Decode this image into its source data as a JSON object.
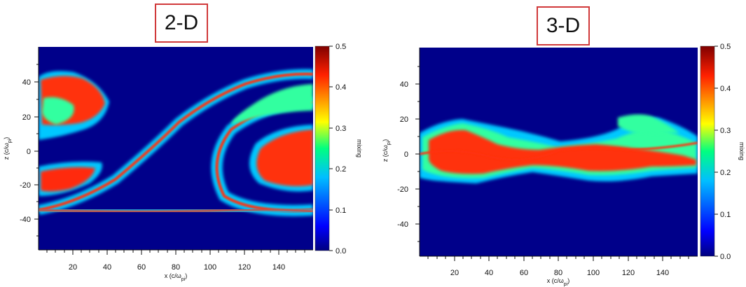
{
  "panels": [
    {
      "title": "2-D",
      "chart_data": {
        "type": "heatmap",
        "description_fields": "mixing fraction field over x-z plane",
        "xlabel": "x (c/ω_pi)",
        "ylabel": "z (c/ω_pi)",
        "xlim": [
          0,
          160
        ],
        "ylim": [
          -60,
          58
        ],
        "xticks": [
          20,
          40,
          60,
          80,
          100,
          120,
          140
        ],
        "yticks": [
          -40,
          -20,
          0,
          20,
          40
        ],
        "colorbar": {
          "label": "mixing",
          "range": [
            0.0,
            0.5
          ],
          "ticks": [
            "0.0",
            "0.1",
            "0.2",
            "0.3",
            "0.4",
            "0.5"
          ]
        },
        "colormap": [
          "#00007f",
          "#0000ff",
          "#00bfff",
          "#00ff80",
          "#ffff00",
          "#ff4000",
          "#7f0000"
        ]
      }
    },
    {
      "title": "3-D",
      "chart_data": {
        "type": "heatmap",
        "xlabel": "x (c/ω_pi)",
        "ylabel": "z (c/ω_pi)",
        "xlim": [
          0,
          160
        ],
        "ylim": [
          -60,
          58
        ],
        "xticks": [
          20,
          40,
          60,
          80,
          100,
          120,
          140
        ],
        "yticks": [
          -40,
          -20,
          0,
          20,
          40
        ],
        "colorbar": {
          "label": "mixing",
          "range": [
            0.0,
            0.5
          ],
          "ticks": [
            "0.0",
            "0.1",
            "0.2",
            "0.3",
            "0.4",
            "0.5"
          ]
        },
        "colormap": [
          "#00007f",
          "#0000ff",
          "#00bfff",
          "#00ff80",
          "#ffff00",
          "#ff4000",
          "#7f0000"
        ]
      }
    }
  ]
}
